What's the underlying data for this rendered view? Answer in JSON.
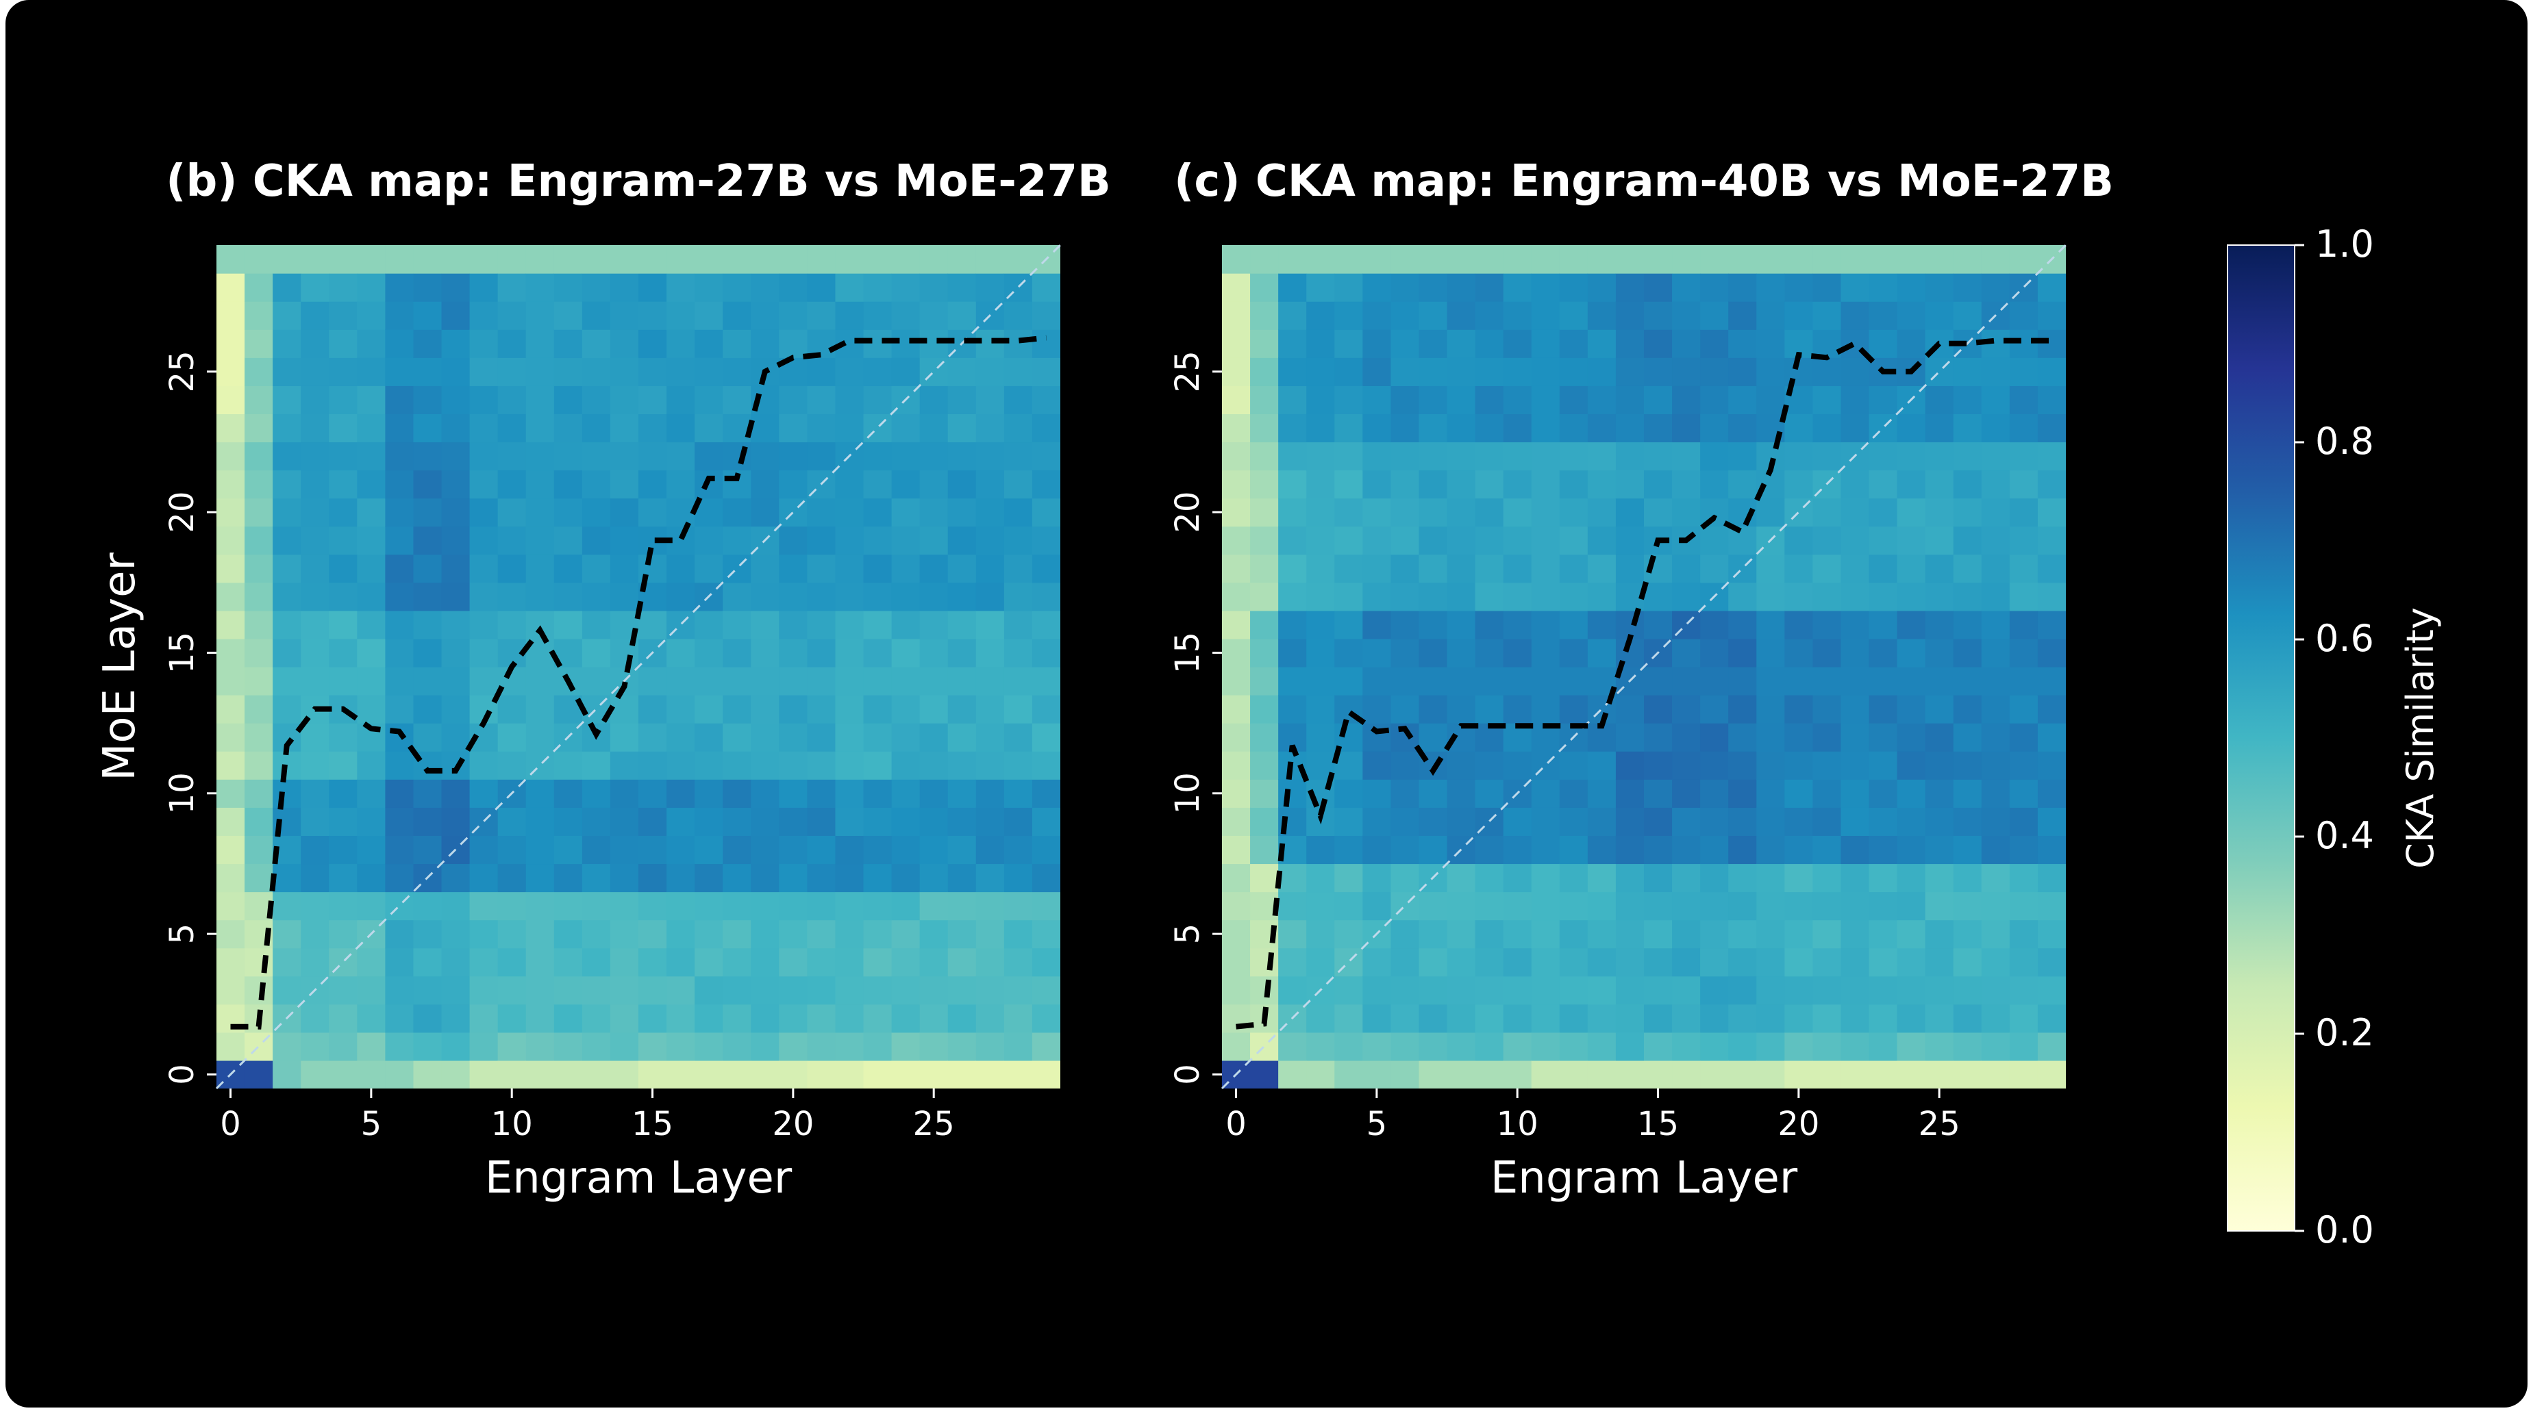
{
  "chart_data": [
    {
      "type": "heatmap",
      "title": "(b) CKA map: Engram-27B vs MoE-27B",
      "xlabel": "Engram Layer",
      "ylabel": "MoE Layer",
      "xlim": [
        -0.5,
        29.5
      ],
      "ylim": [
        -0.5,
        29.5
      ],
      "xticks": [
        "0",
        "5",
        "10",
        "15",
        "20",
        "25"
      ],
      "yticks": [
        "0",
        "5",
        "10",
        "15",
        "20",
        "25"
      ],
      "cells": {
        "engram_layers": 30,
        "moe_layers": 30,
        "value_range": [
          0.0,
          1.0
        ]
      },
      "argmax_path": {
        "x": [
          0,
          1,
          2,
          3,
          4,
          5,
          6,
          7,
          8,
          9,
          10,
          11,
          12,
          13,
          14,
          15,
          16,
          17,
          18,
          19,
          20,
          21,
          22,
          23,
          24,
          25,
          26,
          27,
          28,
          29
        ],
        "y": [
          1.7,
          1.7,
          11.7,
          13,
          13,
          12.3,
          12.2,
          10.8,
          10.8,
          12.5,
          14.5,
          15.8,
          14,
          12.1,
          13.8,
          19,
          19,
          21.2,
          21.2,
          25,
          25.5,
          25.6,
          26.1,
          26.1,
          26.1,
          26.1,
          26.1,
          26.1,
          26.1,
          26.2
        ]
      },
      "diagonal": true
    },
    {
      "type": "heatmap",
      "title": "(c) CKA map: Engram-40B vs MoE-27B",
      "xlabel": "Engram Layer",
      "ylabel": "",
      "xlim": [
        -0.5,
        29.5
      ],
      "ylim": [
        -0.5,
        29.5
      ],
      "xticks": [
        "0",
        "5",
        "10",
        "15",
        "20",
        "25"
      ],
      "yticks": [
        "0",
        "5",
        "10",
        "15",
        "20",
        "25"
      ],
      "cells": {
        "engram_layers": 30,
        "moe_layers": 30,
        "value_range": [
          0.0,
          1.0
        ]
      },
      "argmax_path": {
        "x": [
          0,
          1,
          2,
          3,
          4,
          5,
          6,
          7,
          8,
          9,
          10,
          11,
          12,
          13,
          14,
          15,
          16,
          17,
          18,
          19,
          20,
          21,
          22,
          23,
          24,
          25,
          26,
          27,
          28,
          29
        ],
        "y": [
          1.7,
          1.8,
          11.7,
          9.2,
          12.9,
          12.2,
          12.3,
          10.8,
          12.4,
          12.4,
          12.4,
          12.4,
          12.4,
          12.4,
          15.5,
          19,
          19,
          19.8,
          19.3,
          21.5,
          25.6,
          25.5,
          26,
          25,
          25,
          26,
          26,
          26.1,
          26.1,
          26.1
        ]
      },
      "diagonal": true
    }
  ],
  "colorbar": {
    "label": "CKA Similarity",
    "colormap": "YlGnBu",
    "min": 0.0,
    "max": 1.0,
    "ticks": [
      "0.0",
      "0.2",
      "0.4",
      "0.6",
      "0.8",
      "1.0"
    ]
  },
  "colors": {
    "background": "#000000",
    "text": "#ffffff",
    "argmax_line": "#000000",
    "diagonal_line": "#bfd9ea"
  }
}
